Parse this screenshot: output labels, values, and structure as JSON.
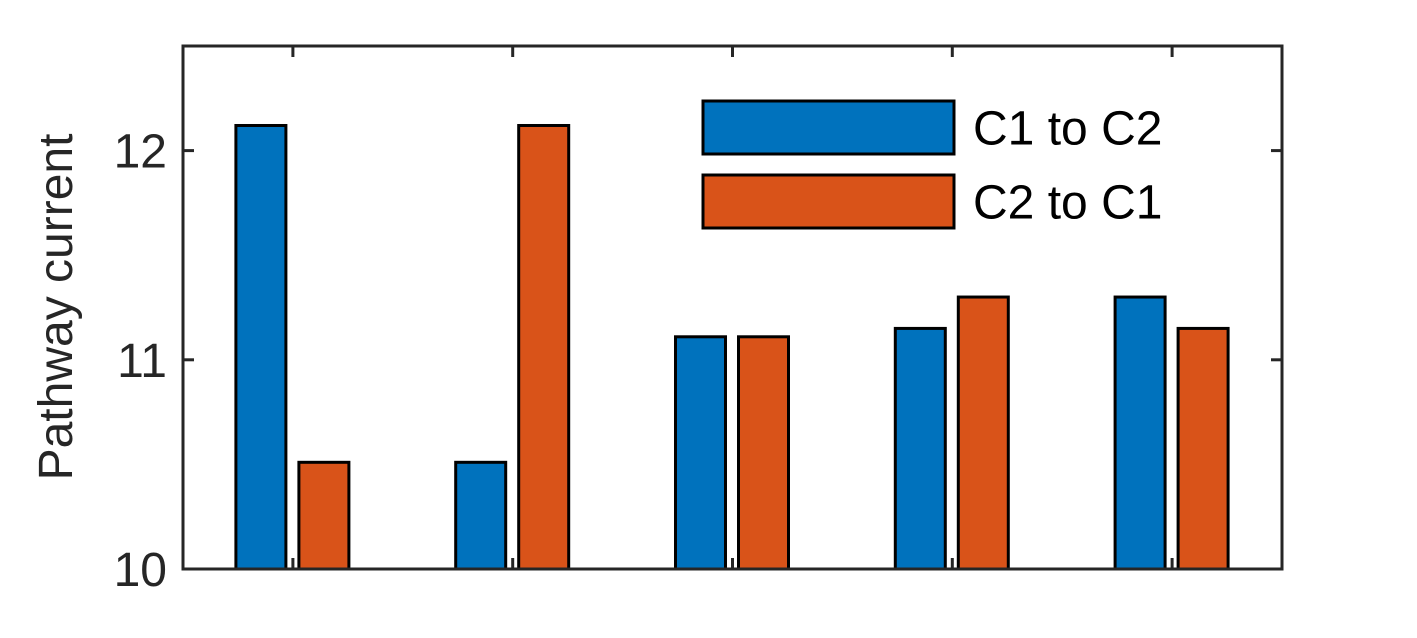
{
  "chart_data": {
    "type": "bar",
    "title": "",
    "xlabel": "",
    "ylabel": "Pathway current",
    "ylim": [
      10,
      12.5
    ],
    "yticks": [
      10,
      11,
      12
    ],
    "categories": [
      "",
      "",
      "",
      "",
      ""
    ],
    "series": [
      {
        "name": "C1 to C2",
        "color": "#0072BD",
        "values": [
          12.12,
          10.51,
          11.11,
          11.15,
          11.3
        ]
      },
      {
        "name": "C2 to C1",
        "color": "#D95319",
        "values": [
          10.51,
          12.12,
          11.11,
          11.3,
          11.15
        ]
      }
    ],
    "legend": {
      "position": "top-right"
    },
    "grid": false
  }
}
